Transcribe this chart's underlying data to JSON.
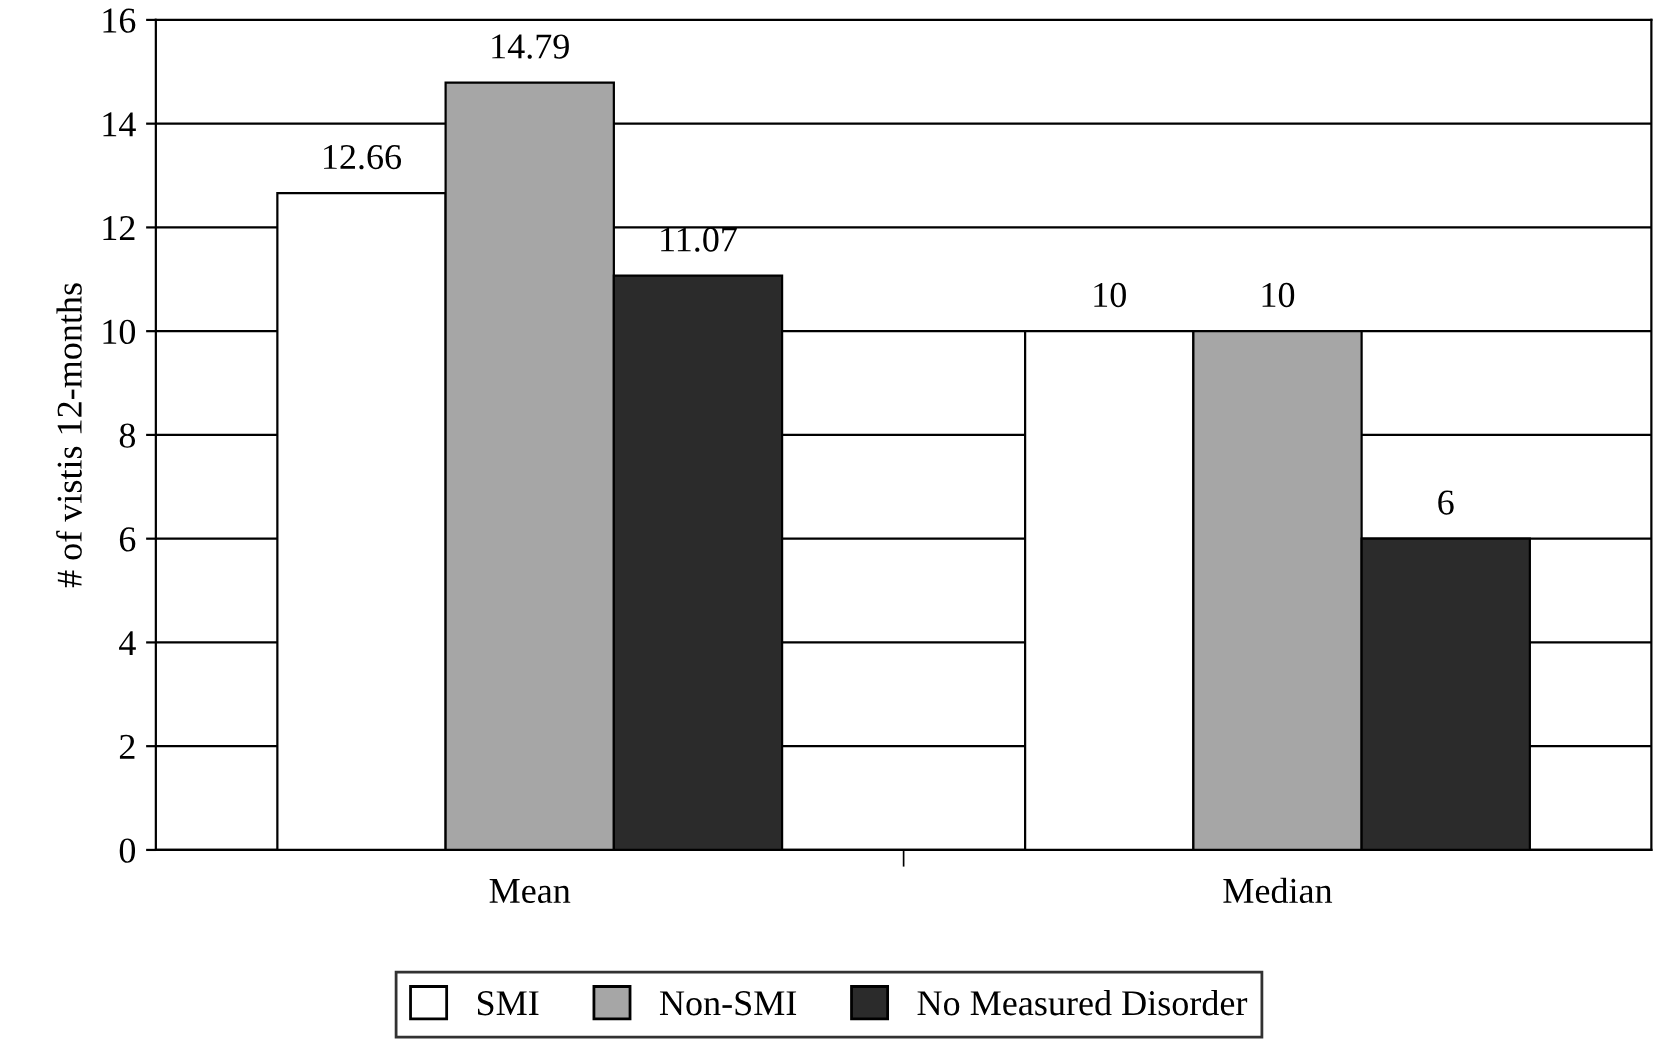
{
  "chart_data": {
    "type": "bar",
    "ylabel": "# of vistis 12-months",
    "categories": [
      "Mean",
      "Median"
    ],
    "series": [
      {
        "name": "SMI",
        "color": "#ffffff",
        "values": [
          12.66,
          10
        ]
      },
      {
        "name": "Non-SMI",
        "color": "#a6a6a6",
        "values": [
          14.79,
          10
        ]
      },
      {
        "name": "No Measured Disorder",
        "color": "#2b2b2b",
        "values": [
          11.07,
          6
        ]
      }
    ],
    "ylim": [
      0,
      16
    ],
    "yticks": [
      0,
      2,
      4,
      6,
      8,
      10,
      12,
      14,
      16
    ],
    "grid": "y",
    "legend": "bottom",
    "data_labels": true
  }
}
